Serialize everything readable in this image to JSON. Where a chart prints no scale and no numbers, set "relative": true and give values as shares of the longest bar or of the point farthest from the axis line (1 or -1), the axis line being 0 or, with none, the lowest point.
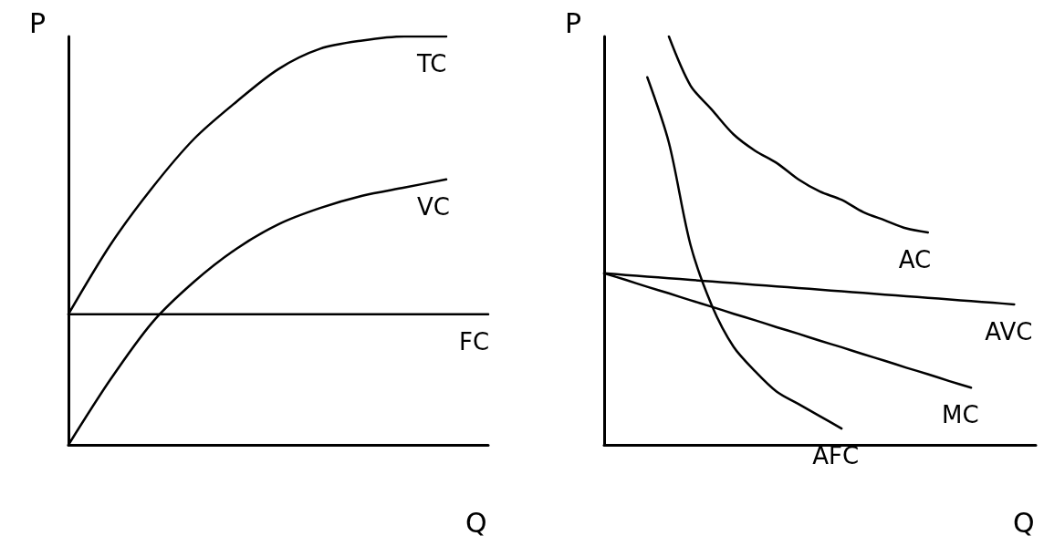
{
  "chart_data": [
    {
      "type": "line",
      "relative": true,
      "xlabel": "Q",
      "ylabel": "P",
      "grid": false,
      "marker": "none",
      "line_style": "solid",
      "categories": [
        null,
        null,
        null,
        null,
        null,
        null,
        null,
        null,
        null,
        null,
        null
      ],
      "series": [
        {
          "name": "TC",
          "color": "#000000",
          "values": [
            0.32,
            0.49,
            0.63,
            0.75,
            0.84,
            0.92,
            0.97,
            0.99,
            1.0,
            1.0,
            null
          ]
        },
        {
          "name": "VC",
          "color": "#000000",
          "values": [
            0.0,
            0.16,
            0.3,
            0.4,
            0.48,
            0.54,
            0.58,
            0.61,
            0.63,
            0.65,
            null
          ]
        },
        {
          "name": "FC",
          "color": "#000000",
          "values": [
            0.32,
            0.32,
            0.32,
            0.32,
            0.32,
            0.32,
            0.32,
            0.32,
            0.32,
            0.32,
            0.32
          ]
        }
      ]
    },
    {
      "type": "line",
      "relative": true,
      "xlabel": "Q",
      "ylabel": "P",
      "grid": false,
      "marker": "none",
      "line_style": "solid",
      "categories": [
        null,
        null,
        null,
        null,
        null,
        null,
        null,
        null,
        null,
        null,
        null,
        null,
        null,
        null,
        null,
        null,
        null,
        null,
        null,
        null,
        null
      ],
      "series": [
        {
          "name": "AC",
          "color": "#000000",
          "values": [
            null,
            null,
            null,
            1.0,
            0.88,
            0.82,
            0.76,
            0.72,
            0.69,
            0.65,
            0.62,
            0.6,
            0.57,
            0.55,
            0.53,
            0.52,
            null,
            null,
            null,
            null,
            null
          ]
        },
        {
          "name": "AVC",
          "color": "#000000",
          "values": [
            0.42,
            0.416,
            0.412,
            0.408,
            0.404,
            0.4,
            0.396,
            0.392,
            0.388,
            0.384,
            0.38,
            0.376,
            0.372,
            0.368,
            0.364,
            0.36,
            0.356,
            0.352,
            0.348,
            0.344,
            null
          ]
        },
        {
          "name": "MC",
          "color": "#000000",
          "values": [
            0.42,
            0.404,
            0.387,
            0.371,
            0.354,
            0.338,
            0.321,
            0.305,
            0.288,
            0.272,
            0.255,
            0.239,
            0.222,
            0.206,
            0.189,
            0.173,
            0.156,
            0.14,
            null,
            null,
            null
          ]
        },
        {
          "name": "AFC",
          "color": "#000000",
          "values": [
            null,
            null,
            0.9,
            0.74,
            0.49,
            0.34,
            0.24,
            0.18,
            0.13,
            0.1,
            0.07,
            0.04,
            null,
            null,
            null,
            null,
            null,
            null,
            null,
            null,
            null
          ]
        }
      ]
    }
  ]
}
